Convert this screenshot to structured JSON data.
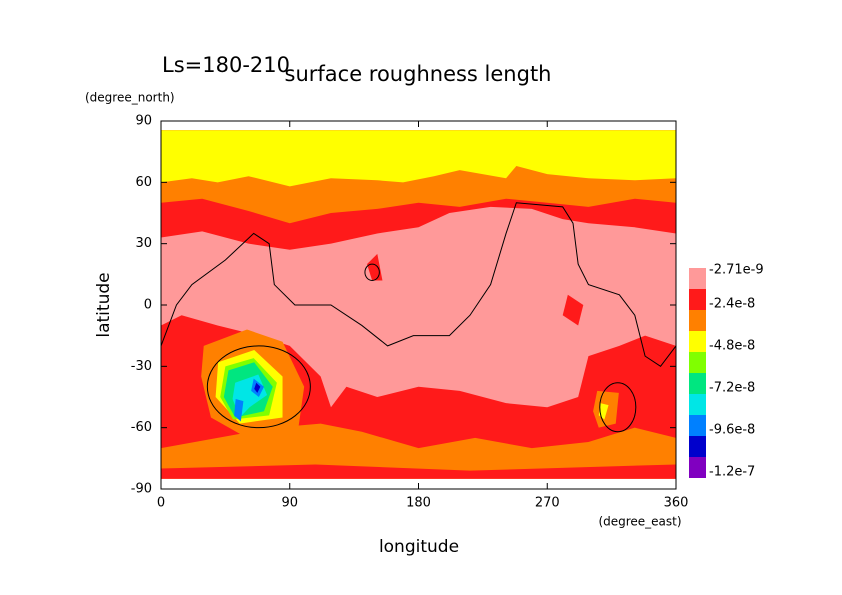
{
  "chart_data": {
    "type": "contour-map",
    "title": "surface roughness length",
    "annotation": "Ls=180-210",
    "y_label": "latitude",
    "y_unit": "(degree_north)",
    "x_label": "longitude",
    "x_unit": "(degree_east)",
    "xlim": [
      0,
      360
    ],
    "ylim": [
      -90,
      90
    ],
    "xticks": [
      0,
      90,
      180,
      270,
      360
    ],
    "yticks": [
      -90,
      -60,
      -30,
      0,
      30,
      60,
      90
    ],
    "colorbar": {
      "colors": [
        "#ff9999",
        "#ff1a1a",
        "#ff8000",
        "#ffff00",
        "#80ff00",
        "#00e680",
        "#00e6e6",
        "#0080ff",
        "#0000cc",
        "#8000c0"
      ],
      "labels": [
        -2.71e-09,
        -2.4e-08,
        -4.8e-08,
        -7.2e-08,
        -9.6e-08,
        -1.2e-07
      ]
    }
  }
}
